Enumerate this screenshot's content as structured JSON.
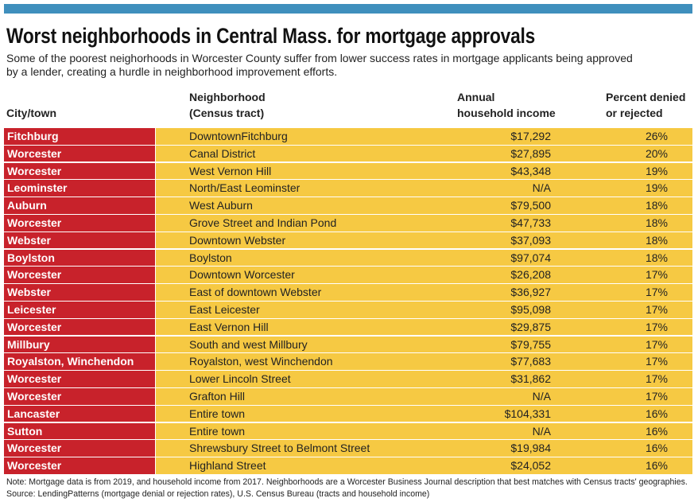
{
  "header": {
    "title": "Worst neighborhoods in Central Mass. for mortgage approvals",
    "subtitle": [
      "Some of the poorest neighorhoods in Worcester County suffer from lower success rates in mortgage applicants being approved",
      "by a lender, creating a hurdle in neighborhood improvement efforts."
    ]
  },
  "table": {
    "columns": [
      [
        "City/town"
      ],
      [
        "Neighborhood",
        "(Census tract)"
      ],
      [
        "Annual",
        "household income"
      ],
      [
        "Percent denied",
        "or rejected"
      ]
    ],
    "rows": [
      [
        "Fitchburg",
        "DowntownFitchburg",
        "$17,292",
        "26%"
      ],
      [
        "Worcester",
        "Canal District",
        "$27,895",
        "20%"
      ],
      [
        "Worcester",
        "West Vernon Hill",
        "$43,348",
        "19%"
      ],
      [
        "Leominster",
        "North/East Leominster",
        "N/A",
        "19%"
      ],
      [
        "Auburn",
        "West Auburn",
        "$79,500",
        "18%"
      ],
      [
        "Worcester",
        "Grove Street and Indian Pond",
        "$47,733",
        "18%"
      ],
      [
        "Webster",
        "Downtown Webster",
        "$37,093",
        "18%"
      ],
      [
        "Boylston",
        "Boylston",
        "$97,074",
        "18%"
      ],
      [
        "Worcester",
        "Downtown Worcester",
        "$26,208",
        "17%"
      ],
      [
        "Webster",
        "East of downtown Webster",
        "$36,927",
        "17%"
      ],
      [
        "Leicester",
        "East Leicester",
        "$95,098",
        "17%"
      ],
      [
        "Worcester",
        "East Vernon Hill",
        "$29,875",
        "17%"
      ],
      [
        "Millbury",
        "South and west Millbury",
        "$79,755",
        "17%"
      ],
      [
        "Royalston, Winchendon",
        "Royalston, west Winchendon",
        "$77,683",
        "17%"
      ],
      [
        "Worcester",
        "Lower Lincoln Street",
        "$31,862",
        "17%"
      ],
      [
        "Worcester",
        "Grafton Hill",
        "N/A",
        "17%"
      ],
      [
        "Lancaster",
        "Entire town",
        "$104,331",
        "16%"
      ],
      [
        "Sutton",
        "Entire town",
        "N/A",
        "16%"
      ],
      [
        "Worcester",
        "Shrewsbury Street to Belmont Street",
        "$19,984",
        "16%"
      ],
      [
        "Worcester",
        "Highland Street",
        "$24,052",
        "16%"
      ]
    ]
  },
  "footer": [
    "Note: Mortgage data is from 2019, and household income from 2017. Neighborhoods are a Worcester Business Journal description that best matches with Census tracts' geographies.",
    "Source: LendingPatterns (mortgage denial or rejection rates), U.S. Census Bureau (tracts and household income)"
  ]
}
